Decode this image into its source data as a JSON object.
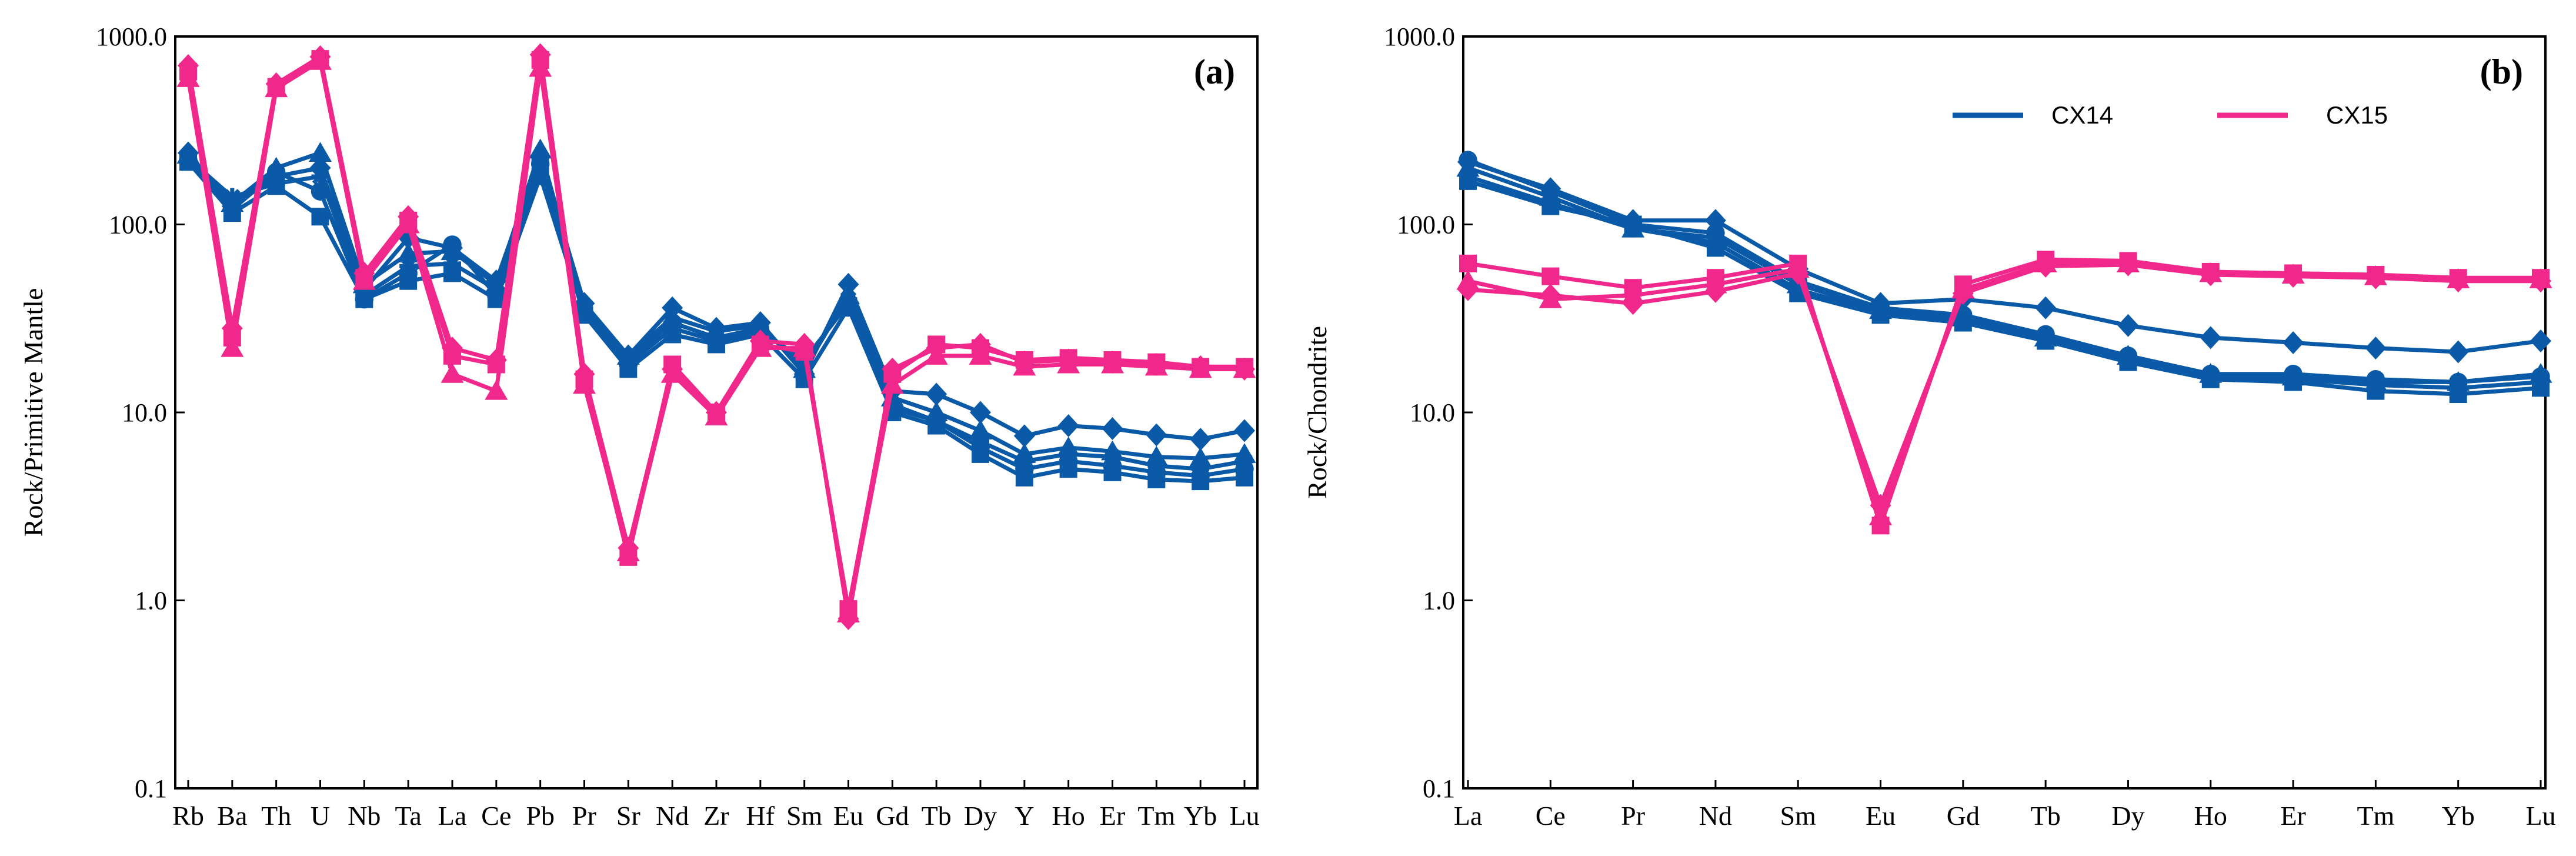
{
  "chart_data": [
    {
      "panel": "a",
      "type": "line",
      "title": "",
      "panel_label": "(a)",
      "xlabel": "",
      "ylabel": "Rock/Primitive Mantle",
      "yscale": "log",
      "ylim": [
        0.1,
        1000
      ],
      "yticks": [
        "0.1",
        "1.0",
        "10.0",
        "100.0",
        "1000.0"
      ],
      "categories": [
        "Rb",
        "Ba",
        "Th",
        "U",
        "Nb",
        "Ta",
        "La",
        "Ce",
        "Pb",
        "Pr",
        "Sr",
        "Nd",
        "Zr",
        "Hf",
        "Sm",
        "Eu",
        "Gd",
        "Tb",
        "Dy",
        "Y",
        "Ho",
        "Er",
        "Tm",
        "Yb",
        "Lu"
      ],
      "series": [
        {
          "name": "CX14",
          "color": "#0a5aa8",
          "marker": "diamond",
          "values": [
            240,
            125,
            180,
            200,
            45,
            85,
            75,
            50,
            230,
            38,
            20,
            36,
            28,
            30,
            16,
            48,
            13,
            12.5,
            10,
            7.5,
            8.5,
            8.2,
            7.6,
            7.2,
            8
          ]
        },
        {
          "name": "CX14",
          "color": "#0a5aa8",
          "marker": "triangle",
          "values": [
            235,
            130,
            200,
            240,
            48,
            70,
            72,
            48,
            250,
            36,
            20,
            32,
            27,
            29,
            17,
            42,
            12,
            10,
            8,
            6,
            6.5,
            6.2,
            5.8,
            5.7,
            6
          ]
        },
        {
          "name": "CX14",
          "color": "#0a5aa8",
          "marker": "star",
          "values": [
            225,
            140,
            165,
            180,
            42,
            60,
            62,
            45,
            220,
            35,
            19,
            30,
            25,
            28,
            18,
            40,
            11,
            9,
            7,
            5.5,
            6,
            5.8,
            5.2,
            5,
            5.5
          ]
        },
        {
          "name": "CX14",
          "color": "#0a5aa8",
          "marker": "circle",
          "values": [
            220,
            120,
            190,
            150,
            40,
            55,
            78,
            42,
            210,
            34,
            18,
            28,
            24,
            27,
            19,
            38,
            10.5,
            9,
            6.5,
            5,
            5.5,
            5.2,
            4.8,
            4.6,
            5
          ]
        },
        {
          "name": "CX14",
          "color": "#0a5aa8",
          "marker": "square",
          "values": [
            215,
            115,
            160,
            110,
            40,
            50,
            55,
            40,
            180,
            33,
            17,
            26,
            23,
            26,
            15,
            36,
            10,
            8.5,
            6,
            4.5,
            5,
            4.8,
            4.4,
            4.3,
            4.5
          ]
        },
        {
          "name": "CX15",
          "color": "#f0288c",
          "marker": "square",
          "values": [
            650,
            25,
            540,
            760,
            52,
            105,
            20,
            18,
            750,
            15,
            1.7,
            18,
            10,
            23,
            21,
            0.9,
            16,
            23,
            22,
            19,
            19.5,
            19,
            18.5,
            17.5,
            17.5
          ]
        },
        {
          "name": "CX15",
          "color": "#f0288c",
          "marker": "triangle",
          "values": [
            600,
            22,
            530,
            740,
            50,
            100,
            16,
            13,
            680,
            14,
            1.8,
            16,
            9.5,
            22,
            22,
            0.85,
            14,
            20,
            20,
            17.5,
            18,
            18,
            17.5,
            17,
            17
          ]
        },
        {
          "name": "CX15",
          "color": "#f0288c",
          "marker": "diamond",
          "values": [
            700,
            28,
            560,
            780,
            55,
            110,
            22,
            19,
            800,
            16,
            1.9,
            17,
            10,
            24,
            23,
            0.8,
            17,
            22,
            23,
            18.5,
            19,
            18.5,
            18,
            17.5,
            17
          ]
        }
      ]
    },
    {
      "panel": "b",
      "type": "line",
      "title": "",
      "panel_label": "(b)",
      "xlabel": "",
      "ylabel": "Rock/Chondrite",
      "yscale": "log",
      "ylim": [
        0.1,
        1000
      ],
      "yticks": [
        "0.1",
        "1.0",
        "10.0",
        "100.0",
        "1000.0"
      ],
      "categories": [
        "La",
        "Ce",
        "Pr",
        "Nd",
        "Sm",
        "Eu",
        "Gd",
        "Tb",
        "Dy",
        "Ho",
        "Er",
        "Tm",
        "Yb",
        "Lu"
      ],
      "legend": [
        {
          "label": "CX14",
          "color": "#0a5aa8"
        },
        {
          "label": "CX15",
          "color": "#f0288c"
        }
      ],
      "series": [
        {
          "name": "CX14",
          "color": "#0a5aa8",
          "marker": "diamond",
          "values": [
            215,
            155,
            105,
            105,
            58,
            38,
            40,
            36,
            29,
            25,
            23.5,
            22,
            21,
            24
          ]
        },
        {
          "name": "CX14",
          "color": "#0a5aa8",
          "marker": "circle",
          "values": [
            220,
            150,
            100,
            90,
            50,
            36,
            33,
            26,
            20,
            16,
            16,
            15,
            14.5,
            15.5
          ]
        },
        {
          "name": "CX14",
          "color": "#0a5aa8",
          "marker": "triangle",
          "values": [
            200,
            140,
            95,
            85,
            48,
            35,
            32,
            25,
            20,
            16,
            15.5,
            14.5,
            14.5,
            16
          ]
        },
        {
          "name": "CX14",
          "color": "#0a5aa8",
          "marker": "star",
          "values": [
            180,
            130,
            95,
            80,
            45,
            34,
            31,
            24,
            19,
            15.5,
            15,
            14,
            13.5,
            14.5
          ]
        },
        {
          "name": "CX14",
          "color": "#0a5aa8",
          "marker": "square",
          "values": [
            170,
            125,
            100,
            75,
            43,
            33,
            30,
            24,
            18.5,
            15,
            14.5,
            13,
            12.5,
            13.5
          ]
        },
        {
          "name": "CX15",
          "color": "#f0288c",
          "marker": "square",
          "values": [
            62,
            53,
            46,
            52,
            62,
            2.5,
            48,
            65,
            64,
            56,
            55,
            54,
            52,
            52
          ]
        },
        {
          "name": "CX15",
          "color": "#f0288c",
          "marker": "triangle",
          "values": [
            50,
            40,
            42,
            48,
            58,
            2.8,
            45,
            62,
            62,
            55,
            54,
            53,
            51,
            51
          ]
        },
        {
          "name": "CX15",
          "color": "#f0288c",
          "marker": "diamond",
          "values": [
            45,
            42,
            38,
            44,
            55,
            3.2,
            43,
            60,
            61,
            54,
            53,
            52,
            50,
            50
          ]
        }
      ]
    }
  ]
}
